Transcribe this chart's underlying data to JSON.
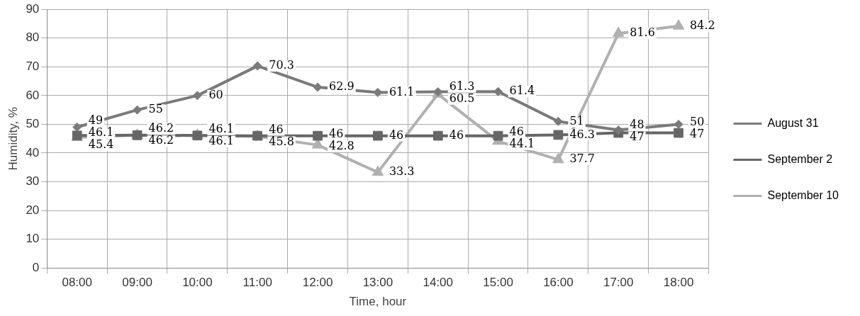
{
  "chart_data": {
    "type": "line",
    "xlabel": "Time, hour",
    "ylabel": "Humidity, %",
    "categories": [
      "08:00",
      "09:00",
      "10:00",
      "11:00",
      "12:00",
      "13:00",
      "14:00",
      "15:00",
      "16:00",
      "17:00",
      "18:00"
    ],
    "series": [
      {
        "name": "August 31",
        "color": "#7a7a7a",
        "marker": "diamond",
        "values": [
          49,
          55,
          60,
          70.3,
          62.9,
          61.1,
          61.3,
          61.4,
          51,
          48,
          50
        ]
      },
      {
        "name": "September 2",
        "color": "#666666",
        "marker": "square",
        "values": [
          46.1,
          46.2,
          46.1,
          46,
          46,
          46,
          46,
          46,
          46.3,
          47,
          47
        ]
      },
      {
        "name": "September 10",
        "color": "#b0b0b0",
        "marker": "triangle",
        "values": [
          45.4,
          46.2,
          46.1,
          45.8,
          42.8,
          33.3,
          60.5,
          44.1,
          37.7,
          81.6,
          84.2
        ]
      }
    ],
    "ylim": [
      0,
      90
    ],
    "yticks": [
      0,
      10,
      20,
      30,
      40,
      50,
      60,
      70,
      80,
      90
    ],
    "grid": true,
    "legend": "right",
    "data_labels": true
  }
}
